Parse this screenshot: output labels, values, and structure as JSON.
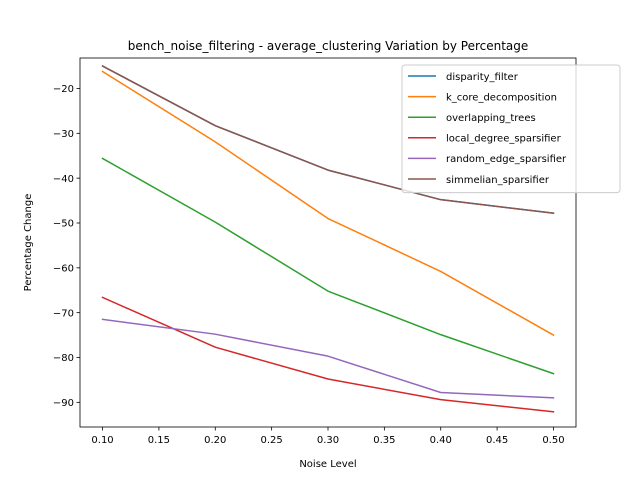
{
  "chart_data": {
    "type": "line",
    "title": "bench_noise_filtering - average_clustering Variation by Percentage",
    "xlabel": "Noise Level",
    "ylabel": "Percentage Change",
    "xlim": [
      0.08,
      0.52
    ],
    "ylim": [
      -95.5,
      -13.2
    ],
    "xticks": [
      0.1,
      0.15,
      0.2,
      0.25,
      0.3,
      0.35,
      0.4,
      0.45,
      0.5
    ],
    "xtick_labels": [
      "0.10",
      "0.15",
      "0.20",
      "0.25",
      "0.30",
      "0.35",
      "0.40",
      "0.45",
      "0.50"
    ],
    "yticks": [
      -90,
      -80,
      -70,
      -60,
      -50,
      -40,
      -30,
      -20
    ],
    "ytick_labels": [
      "−90",
      "−80",
      "−70",
      "−60",
      "−50",
      "−40",
      "−30",
      "−20"
    ],
    "grid": false,
    "legend_position": "upper right",
    "x": [
      0.1,
      0.2,
      0.3,
      0.4,
      0.5
    ],
    "series": [
      {
        "name": "disparity_filter",
        "color": "#1f77b4",
        "values": [
          -15.0,
          -28.3,
          -38.2,
          -44.8,
          -47.8
        ]
      },
      {
        "name": "k_core_decomposition",
        "color": "#ff7f0e",
        "values": [
          -16.2,
          -31.9,
          -49.0,
          -60.8,
          -75.0
        ]
      },
      {
        "name": "overlapping_trees",
        "color": "#2ca02c",
        "values": [
          -35.6,
          -49.8,
          -65.2,
          -74.9,
          -83.6
        ]
      },
      {
        "name": "local_degree_sparsifier",
        "color": "#d62728",
        "values": [
          -66.6,
          -77.7,
          -84.8,
          -89.4,
          -92.1
        ]
      },
      {
        "name": "random_edge_sparsifier",
        "color": "#9467bd",
        "values": [
          -71.5,
          -74.8,
          -79.7,
          -87.8,
          -89.0
        ]
      },
      {
        "name": "simmelian_sparsifier",
        "color": "#8c564b",
        "values": [
          -15.0,
          -28.3,
          -38.2,
          -44.8,
          -47.8
        ]
      }
    ]
  }
}
